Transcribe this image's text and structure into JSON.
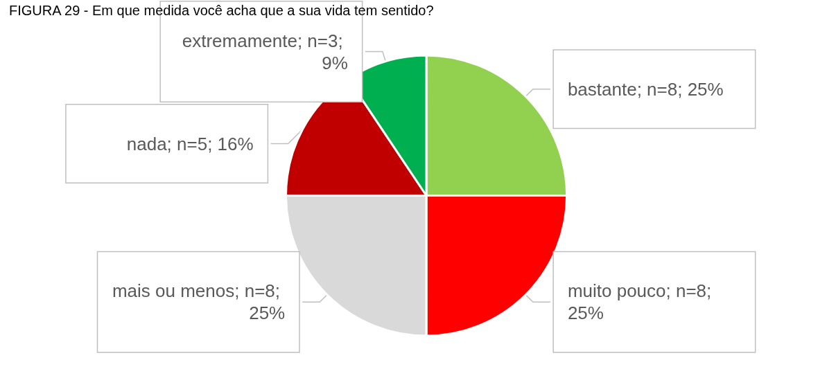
{
  "chart_data": {
    "type": "pie",
    "title": "FIGURA 29 - Em que medida você acha que a sua vida tem sentido?",
    "categories": [
      "bastante; n=8; 25%",
      "muito pouco; n=8; 25%",
      "mais ou menos; n=8; 25%",
      "nada; n=5; 16%",
      "extremamente; n=3; 9%"
    ],
    "values": [
      8,
      8,
      8,
      5,
      3
    ],
    "colors": [
      "#92d050",
      "#ff0000",
      "#d9d9d9",
      "#c00000",
      "#00b050"
    ],
    "legend": false
  }
}
